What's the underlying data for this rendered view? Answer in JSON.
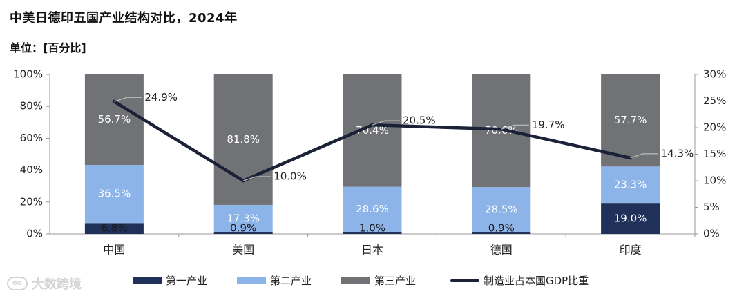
{
  "header": {
    "title": "中美日德印五国产业结构对比，2024年",
    "unit": "单位：[百分比]"
  },
  "colors": {
    "primary": "#1f3159",
    "secondary": "#8db4e8",
    "tertiary": "#717276",
    "line": "#1b2238"
  },
  "chart_data": {
    "type": "bar",
    "stacked": true,
    "categories": [
      "中国",
      "美国",
      "日本",
      "德国",
      "印度"
    ],
    "series": [
      {
        "name": "第一产业",
        "values": [
          6.8,
          0.9,
          1.0,
          0.9,
          19.0
        ],
        "labels": [
          "6.8%",
          "0.9%",
          "1.0%",
          "0.9%",
          "19.0%"
        ]
      },
      {
        "name": "第二产业",
        "values": [
          36.5,
          17.3,
          28.6,
          28.5,
          23.3
        ],
        "labels": [
          "36.5%",
          "17.3%",
          "28.6%",
          "28.5%",
          "23.3%"
        ]
      },
      {
        "name": "第三产业",
        "values": [
          56.7,
          81.8,
          70.4,
          70.6,
          57.7
        ],
        "labels": [
          "56.7%",
          "81.8%",
          "70.4%",
          "70.6%",
          "57.7%"
        ]
      }
    ],
    "line_series": {
      "name": "制造业占本国GDP比重",
      "axis": "right",
      "values": [
        24.9,
        10.0,
        20.5,
        19.7,
        14.3
      ],
      "labels": [
        "24.9%",
        "10.0%",
        "20.5%",
        "19.7%",
        "14.3%"
      ]
    },
    "y_left": {
      "min": 0,
      "max": 100,
      "ticks": [
        "0%",
        "20%",
        "40%",
        "60%",
        "80%",
        "100%"
      ]
    },
    "y_right": {
      "min": 0,
      "max": 30,
      "ticks": [
        "0%",
        "5%",
        "10%",
        "15%",
        "20%",
        "25%",
        "30%"
      ]
    },
    "legend_position": "bottom",
    "grid": false
  },
  "watermark": {
    "text": "大数跨境",
    "icon": "chat-bubble-icon"
  }
}
